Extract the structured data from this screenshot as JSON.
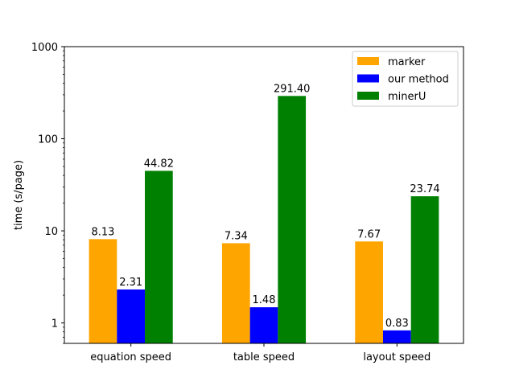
{
  "chart_data": {
    "type": "bar",
    "title": "",
    "xlabel": "",
    "ylabel": "time (s/page)",
    "yscale": "log",
    "ylim": [
      0.6,
      1000
    ],
    "yticks": [
      1,
      10,
      100,
      1000
    ],
    "ytick_labels": [
      "1",
      "10",
      "100",
      "1000"
    ],
    "categories": [
      "equation speed",
      "table speed",
      "layout speed"
    ],
    "legend_position": "top-right",
    "grid": false,
    "series": [
      {
        "name": "marker",
        "color": "#FFA500",
        "values": [
          8.13,
          7.34,
          7.67
        ],
        "labels": [
          "8.13",
          "7.34",
          "7.67"
        ]
      },
      {
        "name": "our method",
        "color": "#0000FF",
        "values": [
          2.31,
          1.48,
          0.83
        ],
        "labels": [
          "2.31",
          "1.48",
          "0.83"
        ]
      },
      {
        "name": "minerU",
        "color": "#008000",
        "values": [
          44.82,
          291.4,
          23.74
        ],
        "labels": [
          "44.82",
          "291.40",
          "23.74"
        ]
      }
    ]
  }
}
